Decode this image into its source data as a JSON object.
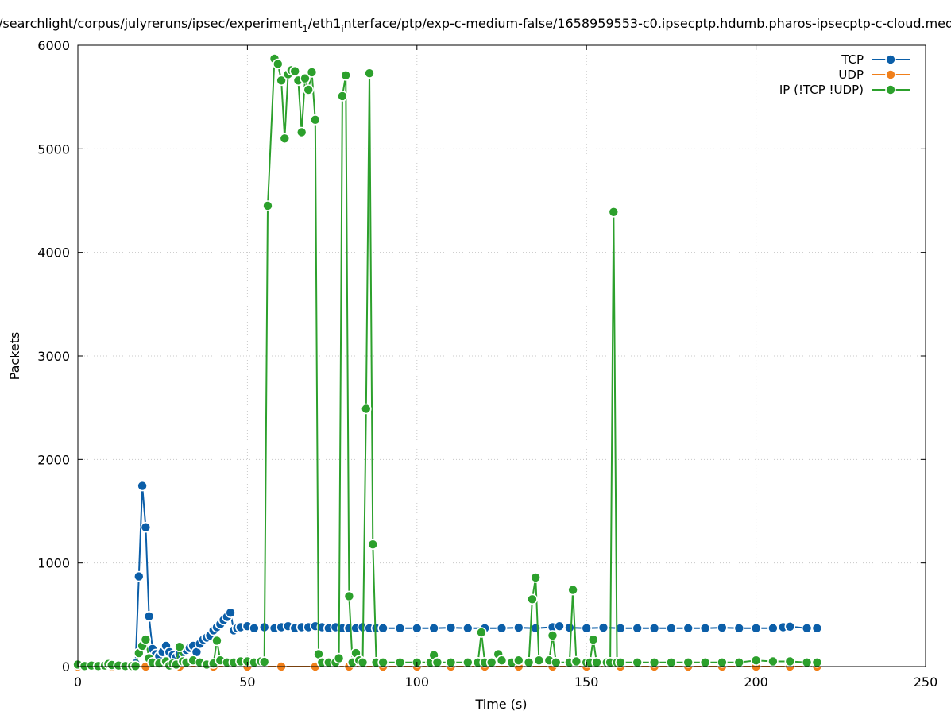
{
  "chart_data": {
    "type": "line",
    "title": "/searchlight/corpus/julyreruns/ipsec/experiment",
    "title_subscript": "1",
    "title_mid": "/eth1",
    "title_subscript2": "i",
    "title_tail": "nterface/ptp/exp-c-medium-false/1658959553-c0.ipsecptp.hdumb.pharos-ipsecptp-c-cloud.med",
    "xlabel": "Time (s)",
    "ylabel": "Packets",
    "xlim": [
      0,
      250
    ],
    "ylim": [
      0,
      6000
    ],
    "x_ticks": [
      "0",
      "50",
      "100",
      "150",
      "200",
      "250"
    ],
    "y_ticks": [
      "0",
      "1000",
      "2000",
      "3000",
      "4000",
      "5000",
      "6000"
    ],
    "grid": true,
    "legend_position": "top-right",
    "series": [
      {
        "name": "TCP",
        "color": "#0b5ea8",
        "points": [
          [
            0,
            10
          ],
          [
            2,
            5
          ],
          [
            4,
            5
          ],
          [
            6,
            10
          ],
          [
            8,
            5
          ],
          [
            10,
            10
          ],
          [
            12,
            5
          ],
          [
            14,
            5
          ],
          [
            16,
            10
          ],
          [
            17,
            30
          ],
          [
            18,
            870
          ],
          [
            19,
            1745
          ],
          [
            20,
            1345
          ],
          [
            21,
            485
          ],
          [
            22,
            170
          ],
          [
            23,
            120
          ],
          [
            24,
            100
          ],
          [
            25,
            140
          ],
          [
            26,
            200
          ],
          [
            27,
            140
          ],
          [
            28,
            110
          ],
          [
            29,
            90
          ],
          [
            30,
            120
          ],
          [
            31,
            140
          ],
          [
            32,
            160
          ],
          [
            33,
            180
          ],
          [
            34,
            200
          ],
          [
            35,
            140
          ],
          [
            36,
            220
          ],
          [
            37,
            260
          ],
          [
            38,
            280
          ],
          [
            39,
            300
          ],
          [
            40,
            350
          ],
          [
            41,
            380
          ],
          [
            42,
            410
          ],
          [
            43,
            450
          ],
          [
            44,
            480
          ],
          [
            45,
            520
          ],
          [
            46,
            350
          ],
          [
            47,
            370
          ],
          [
            48,
            380
          ],
          [
            50,
            390
          ],
          [
            52,
            370
          ],
          [
            55,
            380
          ],
          [
            58,
            370
          ],
          [
            60,
            380
          ],
          [
            62,
            390
          ],
          [
            64,
            370
          ],
          [
            66,
            380
          ],
          [
            68,
            380
          ],
          [
            70,
            390
          ],
          [
            72,
            380
          ],
          [
            74,
            370
          ],
          [
            76,
            380
          ],
          [
            78,
            370
          ],
          [
            80,
            370
          ],
          [
            82,
            370
          ],
          [
            84,
            380
          ],
          [
            86,
            370
          ],
          [
            88,
            370
          ],
          [
            90,
            370
          ],
          [
            95,
            370
          ],
          [
            100,
            370
          ],
          [
            105,
            370
          ],
          [
            110,
            375
          ],
          [
            115,
            370
          ],
          [
            120,
            370
          ],
          [
            125,
            370
          ],
          [
            130,
            375
          ],
          [
            135,
            370
          ],
          [
            140,
            380
          ],
          [
            142,
            390
          ],
          [
            145,
            375
          ],
          [
            150,
            370
          ],
          [
            155,
            375
          ],
          [
            160,
            370
          ],
          [
            165,
            370
          ],
          [
            170,
            370
          ],
          [
            175,
            370
          ],
          [
            180,
            370
          ],
          [
            185,
            370
          ],
          [
            190,
            375
          ],
          [
            195,
            370
          ],
          [
            200,
            370
          ],
          [
            205,
            370
          ],
          [
            208,
            380
          ],
          [
            210,
            385
          ],
          [
            215,
            370
          ],
          [
            218,
            370
          ]
        ]
      },
      {
        "name": "UDP",
        "color": "#f07f1a",
        "points": [
          [
            0,
            0
          ],
          [
            10,
            0
          ],
          [
            20,
            0
          ],
          [
            30,
            0
          ],
          [
            40,
            0
          ],
          [
            50,
            0
          ],
          [
            60,
            0
          ],
          [
            70,
            0
          ],
          [
            80,
            0
          ],
          [
            90,
            0
          ],
          [
            100,
            0
          ],
          [
            110,
            0
          ],
          [
            120,
            0
          ],
          [
            130,
            0
          ],
          [
            140,
            0
          ],
          [
            150,
            0
          ],
          [
            160,
            0
          ],
          [
            170,
            0
          ],
          [
            180,
            0
          ],
          [
            190,
            0
          ],
          [
            200,
            0
          ],
          [
            210,
            0
          ],
          [
            218,
            0
          ]
        ]
      },
      {
        "name": "IP (!TCP  !UDP)",
        "color": "#2ca02c",
        "points": [
          [
            0,
            20
          ],
          [
            2,
            5
          ],
          [
            4,
            10
          ],
          [
            6,
            5
          ],
          [
            8,
            10
          ],
          [
            9,
            25
          ],
          [
            10,
            15
          ],
          [
            12,
            10
          ],
          [
            14,
            5
          ],
          [
            16,
            5
          ],
          [
            17,
            5
          ],
          [
            18,
            130
          ],
          [
            19,
            200
          ],
          [
            20,
            260
          ],
          [
            21,
            80
          ],
          [
            22,
            40
          ],
          [
            24,
            30
          ],
          [
            26,
            50
          ],
          [
            27,
            10
          ],
          [
            28,
            30
          ],
          [
            29,
            20
          ],
          [
            30,
            190
          ],
          [
            31,
            50
          ],
          [
            32,
            40
          ],
          [
            34,
            60
          ],
          [
            36,
            40
          ],
          [
            38,
            20
          ],
          [
            40,
            30
          ],
          [
            41,
            250
          ],
          [
            42,
            60
          ],
          [
            44,
            40
          ],
          [
            46,
            40
          ],
          [
            48,
            50
          ],
          [
            50,
            50
          ],
          [
            52,
            40
          ],
          [
            54,
            50
          ],
          [
            55,
            45
          ],
          [
            56,
            4450
          ],
          [
            58,
            5870
          ],
          [
            59,
            5820
          ],
          [
            60,
            5660
          ],
          [
            61,
            5100
          ],
          [
            62,
            5720
          ],
          [
            63,
            5760
          ],
          [
            64,
            5750
          ],
          [
            65,
            5660
          ],
          [
            66,
            5160
          ],
          [
            67,
            5680
          ],
          [
            68,
            5570
          ],
          [
            69,
            5740
          ],
          [
            70,
            5280
          ],
          [
            71,
            120
          ],
          [
            72,
            40
          ],
          [
            74,
            40
          ],
          [
            76,
            40
          ],
          [
            77,
            80
          ],
          [
            78,
            5510
          ],
          [
            79,
            5710
          ],
          [
            80,
            680
          ],
          [
            81,
            40
          ],
          [
            82,
            130
          ],
          [
            83,
            60
          ],
          [
            84,
            40
          ],
          [
            85,
            2490
          ],
          [
            86,
            5730
          ],
          [
            87,
            1180
          ],
          [
            88,
            40
          ],
          [
            90,
            40
          ],
          [
            95,
            40
          ],
          [
            100,
            40
          ],
          [
            104,
            40
          ],
          [
            105,
            110
          ],
          [
            106,
            40
          ],
          [
            110,
            40
          ],
          [
            115,
            40
          ],
          [
            118,
            40
          ],
          [
            119,
            330
          ],
          [
            120,
            40
          ],
          [
            122,
            40
          ],
          [
            124,
            120
          ],
          [
            125,
            60
          ],
          [
            128,
            40
          ],
          [
            130,
            60
          ],
          [
            133,
            40
          ],
          [
            134,
            650
          ],
          [
            135,
            860
          ],
          [
            136,
            60
          ],
          [
            139,
            60
          ],
          [
            140,
            300
          ],
          [
            141,
            40
          ],
          [
            145,
            40
          ],
          [
            146,
            740
          ],
          [
            147,
            50
          ],
          [
            150,
            40
          ],
          [
            151,
            40
          ],
          [
            152,
            260
          ],
          [
            153,
            40
          ],
          [
            156,
            40
          ],
          [
            157,
            40
          ],
          [
            158,
            4390
          ],
          [
            159,
            40
          ],
          [
            160,
            40
          ],
          [
            165,
            40
          ],
          [
            170,
            40
          ],
          [
            175,
            40
          ],
          [
            180,
            40
          ],
          [
            185,
            40
          ],
          [
            190,
            40
          ],
          [
            195,
            40
          ],
          [
            200,
            60
          ],
          [
            205,
            50
          ],
          [
            210,
            50
          ],
          [
            215,
            40
          ],
          [
            218,
            40
          ]
        ]
      }
    ]
  }
}
